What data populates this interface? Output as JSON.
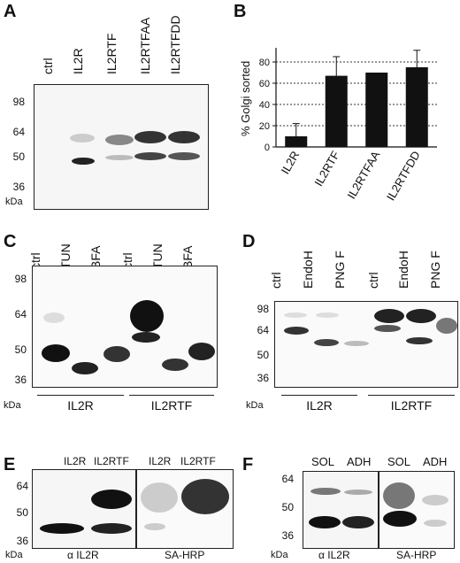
{
  "panels": {
    "A": {
      "letter": "A",
      "lanes": [
        "ctrl",
        "IL2R",
        "IL2RTF",
        "IL2RTFAA",
        "IL2RTFDD"
      ],
      "markers": [
        "98",
        "64",
        "50",
        "36"
      ],
      "unit": "kDa"
    },
    "B": {
      "letter": "B",
      "chart_data": {
        "type": "bar",
        "categories": [
          "IL2R",
          "IL2RTF",
          "IL2RTFAA",
          "IL2RTFDD"
        ],
        "values": [
          10,
          67,
          70,
          75
        ],
        "errors": [
          12,
          18,
          0,
          16
        ],
        "ylabel": "% Golgi sorted",
        "ylim": [
          0,
          90
        ],
        "yticks": [
          "0",
          "20",
          "40",
          "60",
          "80"
        ],
        "grid": true
      }
    },
    "C": {
      "letter": "C",
      "lanes": [
        "ctrl",
        "TUN",
        "BFA",
        "ctrl",
        "TUN",
        "BFA"
      ],
      "markers": [
        "98",
        "64",
        "50",
        "36"
      ],
      "groups": [
        "IL2R",
        "IL2RTF"
      ],
      "unit": "kDa"
    },
    "D": {
      "letter": "D",
      "lanes": [
        "ctrl",
        "EndoH",
        "PNG F",
        "ctrl",
        "EndoH",
        "PNG F"
      ],
      "markers": [
        "98",
        "64",
        "50",
        "36"
      ],
      "groups": [
        "IL2R",
        "IL2RTF"
      ],
      "unit": "kDa"
    },
    "E": {
      "letter": "E",
      "lanes": [
        "IL2R",
        "IL2RTF",
        "IL2R",
        "IL2RTF"
      ],
      "markers": [
        "64",
        "50",
        "36"
      ],
      "detection": [
        "α IL2R",
        "SA-HRP"
      ],
      "unit": "kDa"
    },
    "F": {
      "letter": "F",
      "lanes": [
        "SOL",
        "ADH",
        "SOL",
        "ADH"
      ],
      "markers": [
        "64",
        "50",
        "36"
      ],
      "detection": [
        "α IL2R",
        "SA-HRP"
      ],
      "unit": "kDa"
    }
  }
}
